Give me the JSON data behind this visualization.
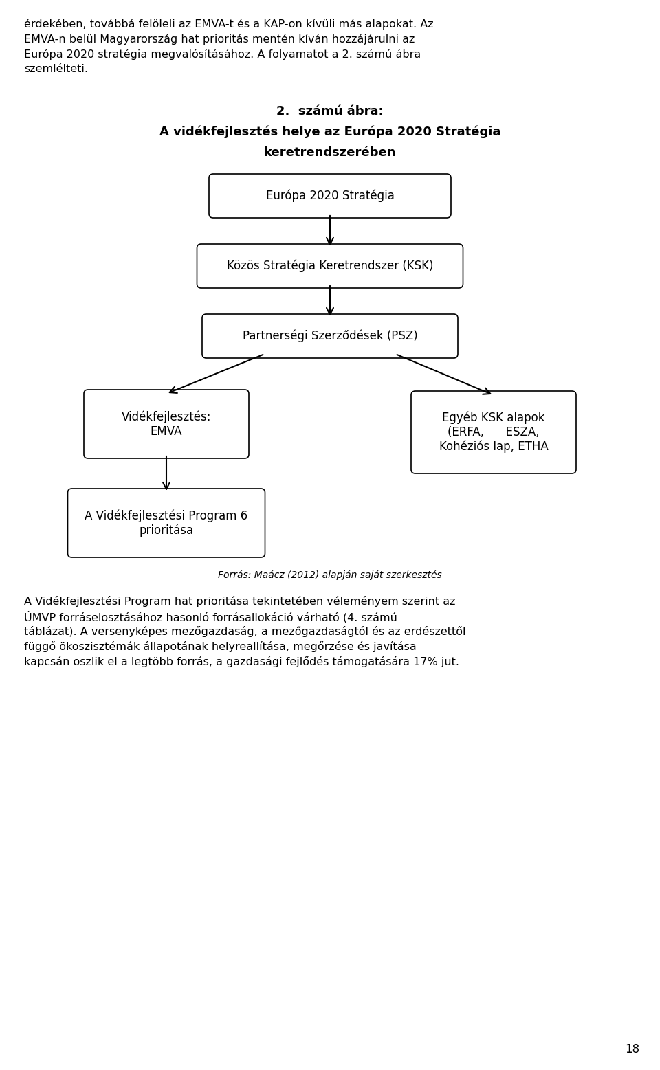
{
  "title_line1": "2.  számú ábra:",
  "title_line2": "A vidékfejlesztés helye az Európa 2020 Stratégia",
  "title_line3": "keretrendszerében",
  "box1_text": "Európa 2020 Stratégia",
  "box2_text": "Közös Stratégia Keretrendszer (KSK)",
  "box3_text": "Partnerségi Szerződések (PSZ)",
  "box4_text": "Vidékfejlesztés:\nEMVA",
  "box5_text": "Egyéb KSK alapok\n(ERFA,      ESZA,\nKohéziós lap, ETHA",
  "box6_text": "A Vidékfejlesztési Program 6\nprioritása",
  "source_text": "Forrás: Maácz (2012) alapján saját szerkesztés",
  "top_para_line1": "érdekében, továbbá felöleli az EMVA-t és a KAP-on kívüli más alapokat. Az",
  "top_para_line2": "EMVA-n belül Magyarország hat prioritás mentén kíván hozzájárulni az",
  "top_para_line3": "Európa 2020 stratégia megvalósításához. A folyamatot a 2. számú ábra",
  "top_para_line4": "szemlélteti.",
  "bot_para_line1": "A Vidékfejlesztési Program hat prioritása tekintetében véleményem szerint az",
  "bot_para_line2": "ÚMVP forráselosztásához hasonló forrásallokáció várható (4. számú",
  "bot_para_line3": "táblázat). A versenyképes mezőgazdaság, a mezőgazdaságtól és az erdészettől",
  "bot_para_line4": "függő ökoszisztémák állapotának helyreallítása, megőrzése és javítása",
  "bot_para_line5": "kapcsán oszlik el a legtöbb forrás, a gazdasági fejlődés támogatására 17% jut.",
  "page_number": "18",
  "bg_color": "#ffffff",
  "text_color": "#000000",
  "box_border_color": "#000000",
  "box_fill_color": "#ffffff",
  "arrow_color": "#000000",
  "title_fontsize": 13,
  "body_fontsize": 11.5,
  "source_fontsize": 10
}
